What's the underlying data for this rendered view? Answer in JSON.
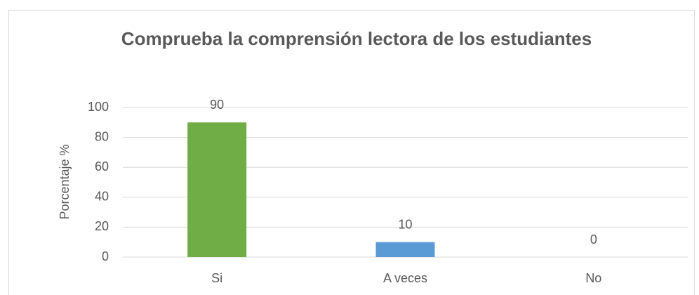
{
  "chart_data": {
    "type": "bar",
    "title": "Comprueba la comprensión lectora de los estudiantes",
    "y_label": "Porcentaje %",
    "categories": [
      "Si",
      "A veces",
      "No"
    ],
    "values": [
      90,
      10,
      0
    ],
    "colors": [
      "#70ad47",
      "#5b9bd5",
      "#a5a5a5"
    ],
    "ylim": [
      0,
      100
    ],
    "yticks": [
      0,
      20,
      40,
      60,
      80,
      100
    ],
    "grid": true,
    "data_labels": true
  }
}
